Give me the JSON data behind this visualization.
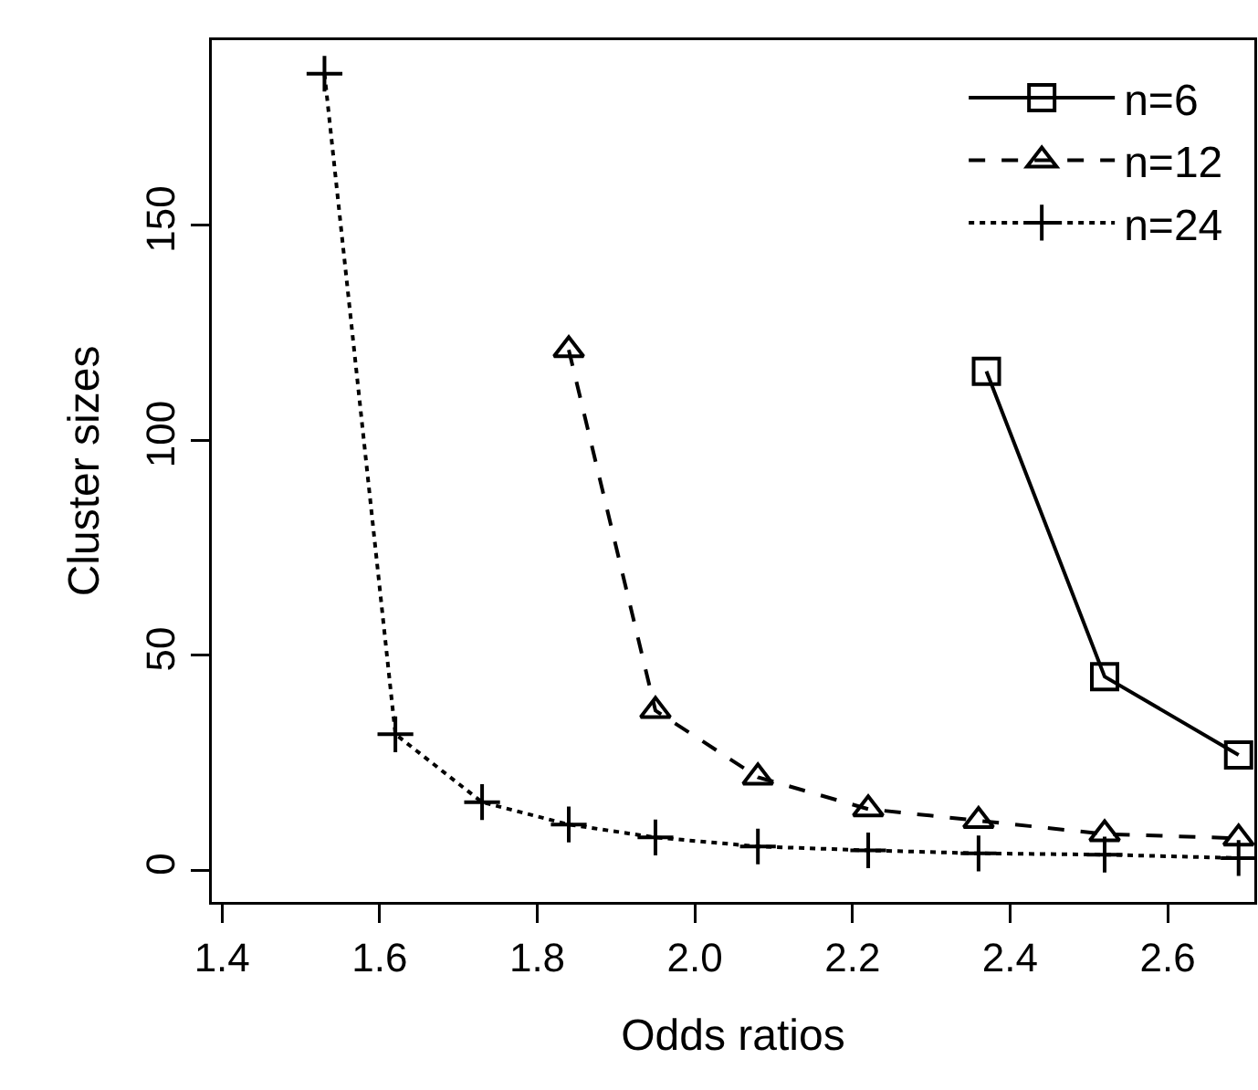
{
  "chart_data": {
    "type": "line",
    "xlabel": "Odds ratios",
    "ylabel": "Cluster sizes",
    "xlim": [
      1.387,
      2.71
    ],
    "ylim": [
      -7.4,
      193
    ],
    "xticks": [
      {
        "value": 1.4,
        "label": "1.4"
      },
      {
        "value": 1.6,
        "label": "1.6"
      },
      {
        "value": 1.8,
        "label": "1.8"
      },
      {
        "value": 2.0,
        "label": "2.0"
      },
      {
        "value": 2.2,
        "label": "2.2"
      },
      {
        "value": 2.4,
        "label": "2.4"
      },
      {
        "value": 2.6,
        "label": "2.6"
      }
    ],
    "yticks": [
      0,
      50,
      100,
      150
    ],
    "grid": false,
    "legend": "top right",
    "series": [
      {
        "name": "n=6",
        "color": "#000000",
        "marker": "square",
        "line_style": "solid",
        "x": [
          2.37,
          2.52,
          2.69
        ],
        "values": [
          116,
          45,
          26.8
        ]
      },
      {
        "name": "n=12",
        "color": "#000000",
        "marker": "triangle",
        "line_style": "dashed",
        "x": [
          1.84,
          1.95,
          2.08,
          2.22,
          2.36,
          2.52,
          2.69
        ],
        "values": [
          121,
          37.1,
          21.6,
          14.2,
          11.5,
          8.4,
          7.4
        ]
      },
      {
        "name": "n=24",
        "color": "#000000",
        "marker": "cross",
        "line_style": "dotted",
        "x": [
          1.53,
          1.62,
          1.73,
          1.84,
          1.95,
          2.08,
          2.22,
          2.36,
          2.52,
          2.69
        ],
        "values": [
          185.2,
          31.6,
          15.8,
          10.6,
          7.6,
          5.5,
          4.6,
          3.9,
          3.6,
          2.8
        ]
      }
    ]
  }
}
